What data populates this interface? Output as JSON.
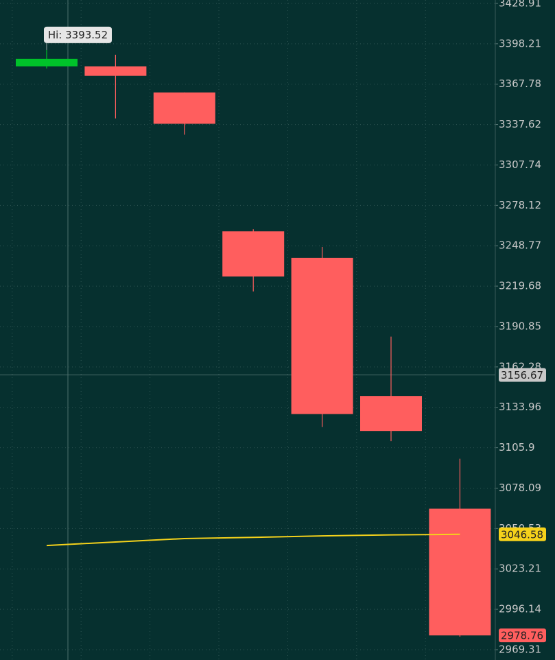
{
  "chart_data": {
    "type": "candlestick",
    "categories": [
      null,
      null,
      null,
      null,
      null,
      null,
      null
    ],
    "open": [
      3381.2,
      3381.2,
      3361.6,
      3259.2,
      3240.0,
      3141.9,
      3064.0
    ],
    "high": [
      3393.52,
      3389.9,
      3361.6,
      3260.7,
      3247.9,
      3183.7,
      3098.3
    ],
    "low": [
      3379.6,
      3342.2,
      3330.1,
      3215.9,
      3120.3,
      3110.4,
      2977.9
    ],
    "close": [
      3386.8,
      3374.0,
      3338.2,
      3226.6,
      3129.3,
      3117.5,
      2978.76
    ],
    "up_color": "#00c22a",
    "down_color": "#ff5e5e",
    "moving_average": {
      "color": "#f5d21b",
      "values": [
        3039.0,
        3041.4,
        3043.7,
        3044.5,
        3045.5,
        3046.2,
        3046.58
      ]
    },
    "annotation": "Hi: 3393.52",
    "crosshair_value": 3156.67,
    "log_scale": true,
    "grid": true,
    "ylim": [
      2962.5,
      3431.5
    ],
    "yticks": [
      2969.31,
      2996.14,
      3023.21,
      3050.53,
      3078.09,
      3105.9,
      3133.96,
      3162.28,
      3190.85,
      3219.68,
      3248.77,
      3278.12,
      3307.74,
      3337.62,
      3367.78,
      3398.21,
      3428.91
    ]
  }
}
